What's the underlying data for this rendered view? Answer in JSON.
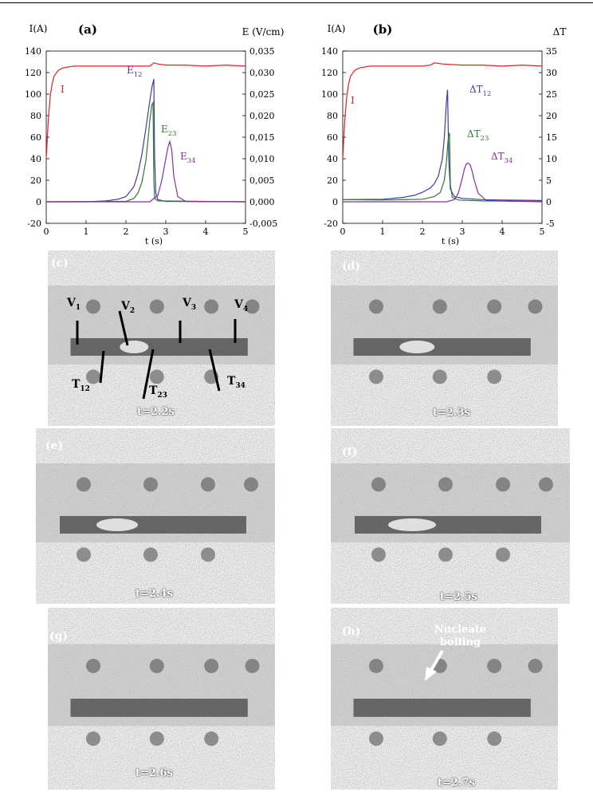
{
  "chart_data": [
    {
      "type": "line",
      "panel_label": "(a)",
      "left_axis_label": "I(A)",
      "right_axis_label": "E (V/cm)",
      "xlabel": "t (s)",
      "xlim": [
        0,
        5
      ],
      "ylim_left": [
        -20,
        140
      ],
      "ylim_right": [
        -0.005,
        0.035
      ],
      "x_ticks": [
        "0",
        "1",
        "2",
        "3",
        "4",
        "5"
      ],
      "y_ticks_left": [
        "-20",
        "0",
        "20",
        "40",
        "60",
        "80",
        "100",
        "120",
        "140"
      ],
      "y_ticks_right": [
        "-0,005",
        "0,000",
        "0,005",
        "0,010",
        "0,015",
        "0,020",
        "0,025",
        "0,030",
        "0,035"
      ],
      "series": [
        {
          "name": "I",
          "name_sub": "",
          "axis": "left",
          "color": "#e02020",
          "x": [
            0,
            0.05,
            0.1,
            0.15,
            0.2,
            0.3,
            0.4,
            0.5,
            0.7,
            1.0,
            1.5,
            2.0,
            2.5,
            2.6,
            2.7,
            2.8,
            3.0,
            3.5,
            4.0,
            4.5,
            5.0
          ],
          "y": [
            40,
            75,
            98,
            110,
            117,
            122,
            124,
            125,
            126,
            126,
            126,
            126,
            126,
            126,
            129,
            128,
            127,
            127,
            126,
            127,
            126
          ]
        },
        {
          "name": "E",
          "name_sub": "12",
          "axis": "right",
          "color": "#3a3aa8",
          "x": [
            0,
            1.0,
            1.5,
            1.8,
            2.0,
            2.2,
            2.3,
            2.4,
            2.5,
            2.6,
            2.65,
            2.7,
            2.72,
            2.75,
            2.8,
            3.0,
            5.0
          ],
          "y": [
            0,
            0,
            0.0002,
            0.0006,
            0.0012,
            0.0035,
            0.0065,
            0.011,
            0.017,
            0.0235,
            0.0265,
            0.0285,
            0.01,
            0.002,
            0.0005,
            0.0001,
            0
          ]
        },
        {
          "name": "E",
          "name_sub": "23",
          "axis": "right",
          "color": "#2f7a2f",
          "x": [
            0,
            2.0,
            2.2,
            2.3,
            2.4,
            2.5,
            2.55,
            2.6,
            2.65,
            2.68,
            2.7,
            2.72,
            2.8,
            5.0
          ],
          "y": [
            0,
            0.0001,
            0.0008,
            0.002,
            0.0045,
            0.0095,
            0.014,
            0.019,
            0.0225,
            0.023,
            0.005,
            0.0008,
            0.0002,
            0
          ]
        },
        {
          "name": "E",
          "name_sub": "34",
          "axis": "right",
          "color": "#8a2f9a",
          "x": [
            0,
            2.6,
            2.8,
            2.9,
            3.0,
            3.05,
            3.1,
            3.15,
            3.2,
            3.3,
            3.5,
            5.0
          ],
          "y": [
            0,
            0,
            0.0015,
            0.005,
            0.01,
            0.0125,
            0.014,
            0.012,
            0.006,
            0.0012,
            0.0001,
            0
          ]
        }
      ]
    },
    {
      "type": "line",
      "panel_label": "(b)",
      "left_axis_label": "I(A)",
      "right_axis_label": "ΔT",
      "xlabel": "t (s)",
      "xlim": [
        0,
        5
      ],
      "ylim_left": [
        -20,
        140
      ],
      "ylim_right": [
        -5,
        35
      ],
      "x_ticks": [
        "0",
        "1",
        "2",
        "3",
        "4",
        "5"
      ],
      "y_ticks_left": [
        "-20",
        "0",
        "20",
        "40",
        "60",
        "80",
        "100",
        "120",
        "140"
      ],
      "y_ticks_right": [
        "-5",
        "0",
        "5",
        "10",
        "15",
        "20",
        "25",
        "30",
        "35"
      ],
      "series": [
        {
          "name": "I",
          "name_sub": "",
          "axis": "left",
          "color": "#e02020",
          "x": [
            0,
            0.05,
            0.1,
            0.15,
            0.2,
            0.3,
            0.4,
            0.5,
            0.7,
            1.0,
            1.5,
            2.0,
            2.2,
            2.3,
            2.5,
            3.0,
            3.5,
            4.0,
            4.5,
            5.0
          ],
          "y": [
            40,
            75,
            98,
            110,
            117,
            122,
            124,
            125,
            126,
            126,
            126,
            126,
            127,
            129,
            128,
            127,
            127,
            126,
            127,
            126
          ]
        },
        {
          "name": "ΔT",
          "name_sub": "12",
          "axis": "right",
          "color": "#3a3aa8",
          "x": [
            0,
            1.0,
            1.5,
            1.8,
            2.0,
            2.2,
            2.3,
            2.4,
            2.5,
            2.55,
            2.6,
            2.63,
            2.66,
            2.7,
            2.8,
            3.0,
            3.5,
            4.0,
            5.0
          ],
          "y": [
            0.5,
            0.6,
            1.0,
            1.5,
            2.2,
            3.2,
            4.2,
            6.0,
            10.0,
            15.0,
            23.0,
            26.0,
            10.0,
            3.0,
            1.2,
            0.8,
            0.5,
            0.4,
            0.3
          ]
        },
        {
          "name": "ΔT",
          "name_sub": "23",
          "axis": "right",
          "color": "#2f7a2f",
          "x": [
            0,
            1.0,
            2.0,
            2.3,
            2.45,
            2.55,
            2.6,
            2.65,
            2.68,
            2.7,
            2.75,
            2.9,
            3.5,
            5.0
          ],
          "y": [
            0.5,
            0.4,
            0.6,
            1.2,
            2.2,
            5.0,
            9.0,
            15.0,
            16.0,
            4.0,
            1.0,
            0.4,
            0.2,
            0.1
          ]
        },
        {
          "name": "ΔT",
          "name_sub": "34",
          "axis": "right",
          "color": "#8a2f9a",
          "x": [
            0,
            2.6,
            2.8,
            2.9,
            3.0,
            3.05,
            3.1,
            3.15,
            3.2,
            3.25,
            3.3,
            3.4,
            3.6,
            5.0
          ],
          "y": [
            0,
            0,
            0.5,
            2.0,
            5.5,
            7.5,
            8.8,
            9.0,
            8.5,
            7.0,
            5.0,
            2.0,
            0.3,
            0
          ]
        }
      ]
    }
  ],
  "photos": [
    {
      "label": "(c)",
      "time": "t=2.2s"
    },
    {
      "label": "(d)",
      "time": "t=2.3s"
    },
    {
      "label": "(e)",
      "time": "t=2.4s"
    },
    {
      "label": "(f)",
      "time": "t=2.5s"
    },
    {
      "label": "(g)",
      "time": "t=2.6s"
    },
    {
      "label": "(h)",
      "time": "t=2.7s"
    }
  ],
  "probe_labels": {
    "v1": {
      "base": "V",
      "sub": "1"
    },
    "v2": {
      "base": "V",
      "sub": "2"
    },
    "v3": {
      "base": "V",
      "sub": "3"
    },
    "v4": {
      "base": "V",
      "sub": "4"
    },
    "t12": {
      "base": "T",
      "sub": "12"
    },
    "t23": {
      "base": "T",
      "sub": "23"
    },
    "t34": {
      "base": "T",
      "sub": "34"
    }
  },
  "nucleate": {
    "line1": "Nucleate",
    "line2": "boiling"
  }
}
